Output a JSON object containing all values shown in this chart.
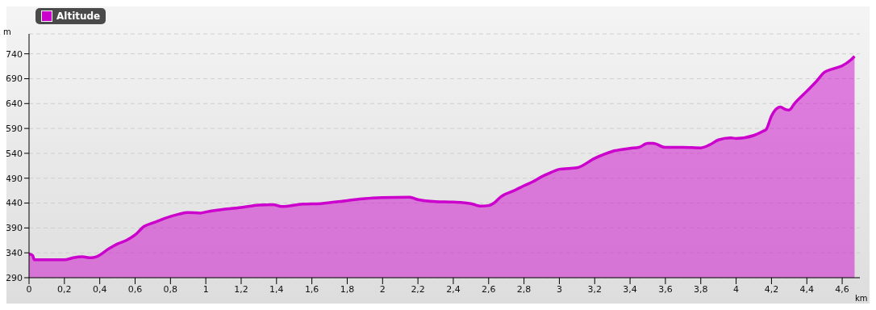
{
  "chart_data": {
    "type": "area",
    "xlabel": "km",
    "ylabel": "m",
    "x": [
      0,
      0.02,
      0.03,
      0.1,
      0.2,
      0.25,
      0.3,
      0.35,
      0.38,
      0.45,
      0.5,
      0.55,
      0.6,
      0.65,
      0.7,
      0.8,
      0.85,
      0.9,
      0.97,
      1.0,
      1.05,
      1.2,
      1.3,
      1.38,
      1.43,
      1.55,
      1.65,
      1.8,
      1.9,
      2.0,
      2.15,
      2.2,
      2.3,
      2.4,
      2.5,
      2.55,
      2.6,
      2.63,
      2.67,
      2.75,
      2.8,
      2.85,
      2.9,
      2.95,
      3.0,
      3.1,
      3.2,
      3.3,
      3.4,
      3.45,
      3.5,
      3.53,
      3.6,
      3.7,
      3.8,
      3.85,
      3.9,
      3.97,
      4.0,
      4.1,
      4.15,
      4.17,
      4.2,
      4.25,
      4.28,
      4.3,
      4.33,
      4.4,
      4.45,
      4.5,
      4.55,
      4.6,
      4.65,
      4.67
    ],
    "series": [
      {
        "name": "Altitude",
        "color": "#cc00cc",
        "values": [
          338,
          335,
          326,
          326,
          326,
          330,
          332,
          330,
          332,
          348,
          358,
          365,
          376,
          393,
          400,
          413,
          418,
          421,
          420,
          422,
          425,
          431,
          436,
          437,
          433,
          438,
          439,
          445,
          449,
          451,
          452,
          447,
          443,
          442,
          439,
          434,
          435,
          440,
          453,
          466,
          475,
          483,
          493,
          501,
          508,
          511,
          530,
          544,
          550,
          552,
          560,
          560,
          552,
          552,
          551,
          557,
          567,
          571,
          570,
          576,
          584,
          588,
          615,
          633,
          628,
          627,
          640,
          665,
          683,
          703,
          710,
          716,
          728,
          735
        ]
      }
    ],
    "xlim": [
      0,
      4.7
    ],
    "xticks": [
      0,
      {
        "value": 0.2,
        "label": "0,2"
      },
      {
        "value": 0.4,
        "label": "0,4"
      },
      {
        "value": 0.6,
        "label": "0,6"
      },
      {
        "value": 0.8,
        "label": "0,8"
      },
      1,
      {
        "value": 1.2,
        "label": "1,2"
      },
      {
        "value": 1.4,
        "label": "1,4"
      },
      {
        "value": 1.6,
        "label": "1,6"
      },
      {
        "value": 1.8,
        "label": "1,8"
      },
      2,
      {
        "value": 2.2,
        "label": "2,2"
      },
      {
        "value": 2.4,
        "label": "2,4"
      },
      {
        "value": 2.6,
        "label": "2,6"
      },
      {
        "value": 2.8,
        "label": "2,8"
      },
      3,
      {
        "value": 3.2,
        "label": "3,2"
      },
      {
        "value": 3.4,
        "label": "3,4"
      },
      {
        "value": 3.6,
        "label": "3,6"
      },
      {
        "value": 3.8,
        "label": "3,8"
      },
      4,
      {
        "value": 4.2,
        "label": "4,2"
      },
      {
        "value": 4.4,
        "label": "4,4"
      },
      {
        "value": 4.6,
        "label": "4,6"
      }
    ],
    "ylim": [
      290,
      780
    ],
    "yticks": [
      290,
      340,
      390,
      440,
      490,
      540,
      590,
      640,
      690,
      740
    ],
    "grid": "y",
    "legend": "top left",
    "line_style": "solid",
    "marker": "none"
  }
}
